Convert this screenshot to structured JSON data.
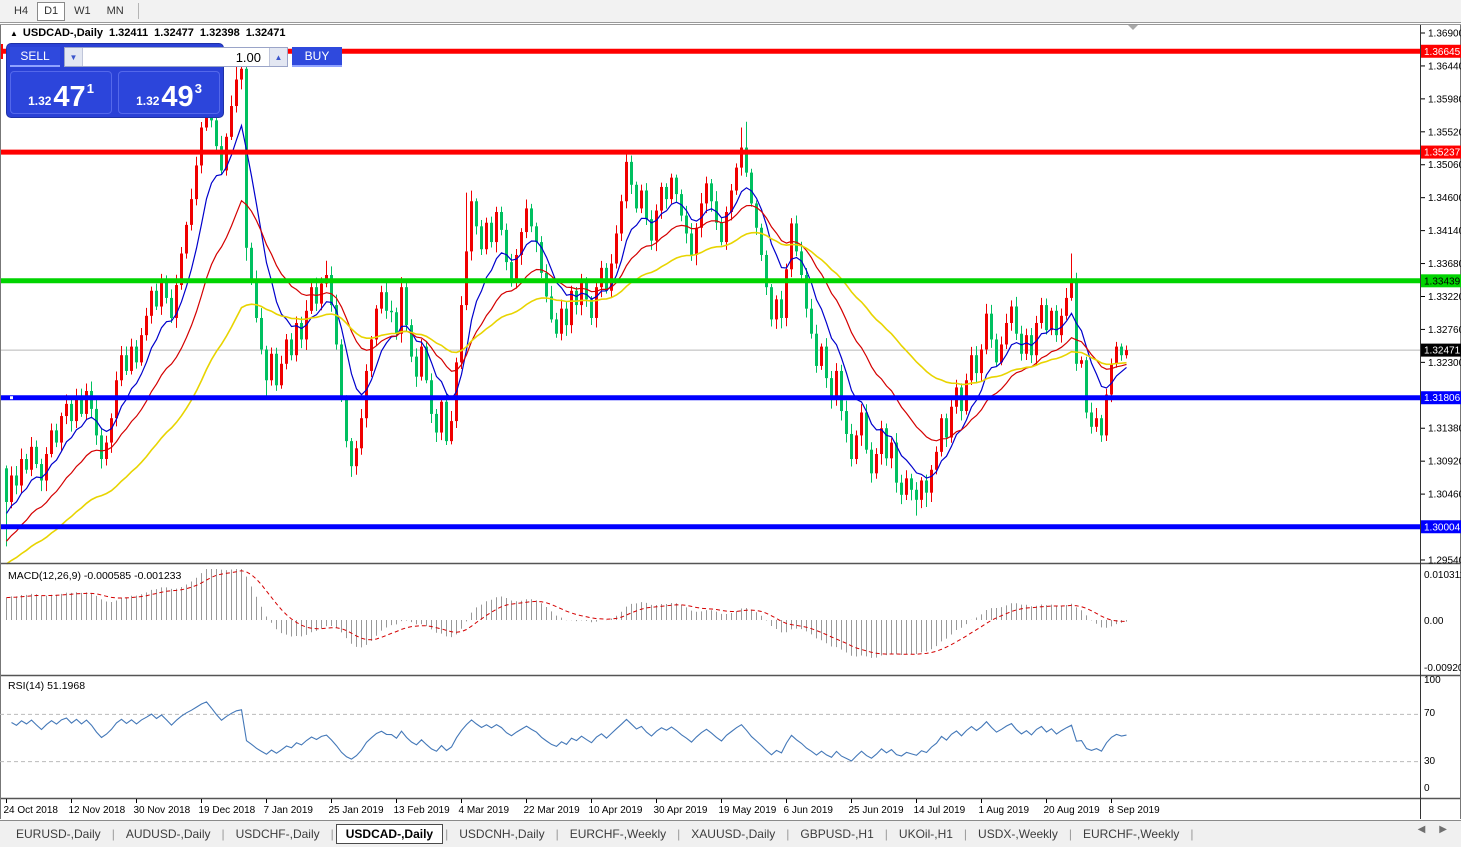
{
  "toolbar": {
    "timeframes": [
      "H4",
      "D1",
      "W1",
      "MN"
    ],
    "active": "D1"
  },
  "window_title": {
    "symbol": "USDCAD-,Daily",
    "open": "1.32411",
    "high": "1.32477",
    "low": "1.32398",
    "close": "1.32471"
  },
  "trade_panel": {
    "sell_label": "SELL",
    "buy_label": "BUY",
    "volume": "1.00",
    "sell_price_small": "1.32",
    "sell_price_big": "47",
    "sell_price_sup": "1",
    "buy_price_small": "1.32",
    "buy_price_big": "49",
    "buy_price_sup": "3",
    "panel_color": "#2a41d6"
  },
  "price_axis": {
    "ticks": [
      "1.36900",
      "1.36440",
      "1.35980",
      "1.35520",
      "1.35060",
      "1.34600",
      "1.34140",
      "1.33680",
      "1.33220",
      "1.32760",
      "1.32300",
      "1.31380",
      "1.30920",
      "1.30460",
      "1.29540"
    ],
    "level_labels": [
      {
        "label": "1.36645",
        "price": 1.36645,
        "bg": "#ff0000",
        "fg": "#ffffff"
      },
      {
        "label": "1.35237",
        "price": 1.35237,
        "bg": "#ff0000",
        "fg": "#ffffff"
      },
      {
        "label": "1.33439",
        "price": 1.33439,
        "bg": "#00d400",
        "fg": "#000000"
      },
      {
        "label": "1.32471",
        "price": 1.32471,
        "bg": "#000000",
        "fg": "#ffffff"
      },
      {
        "label": "1.31806",
        "price": 1.31806,
        "bg": "#0000ff",
        "fg": "#ffffff"
      },
      {
        "label": "1.30004",
        "price": 1.30004,
        "bg": "#0000ff",
        "fg": "#ffffff"
      }
    ]
  },
  "chart_data": {
    "type": "candlestick",
    "symbol": "USDCAD",
    "timeframe": "Daily",
    "bull_color": "#f00000",
    "bear_color": "#00c060",
    "first_open": 1.3082,
    "closes": [
      1.3035,
      1.3072,
      1.3058,
      1.3095,
      1.308,
      1.3112,
      1.3088,
      1.3065,
      1.3102,
      1.3135,
      1.3118,
      1.3155,
      1.3172,
      1.3148,
      1.318,
      1.3158,
      1.319,
      1.3165,
      1.3128,
      1.3095,
      1.3118,
      1.3152,
      1.3205,
      1.324,
      1.3218,
      1.3252,
      1.323,
      1.3268,
      1.3295,
      1.333,
      1.3308,
      1.3345,
      1.332,
      1.3292,
      1.3338,
      1.3382,
      1.3422,
      1.3458,
      1.3505,
      1.3558,
      1.36,
      1.3568,
      1.3532,
      1.3498,
      1.3545,
      1.3588,
      1.3625,
      1.364,
      1.339,
      1.3345,
      1.3292,
      1.3248,
      1.3205,
      1.3242,
      1.3198,
      1.3228,
      1.3262,
      1.324,
      1.3285,
      1.3262,
      1.3302,
      1.3335,
      1.3312,
      1.334,
      1.3352,
      1.331,
      1.3255,
      1.318,
      1.312,
      1.3085,
      1.311,
      1.3152,
      1.3218,
      1.3262,
      1.3305,
      1.3328,
      1.3302,
      1.33,
      1.327,
      1.3335,
      1.3282,
      1.3238,
      1.321,
      1.3252,
      1.3205,
      1.3158,
      1.3132,
      1.3175,
      1.312,
      1.3148,
      1.323,
      1.331,
      1.3385,
      1.3455,
      1.342,
      1.3388,
      1.3425,
      1.3398,
      1.344,
      1.3415,
      1.337,
      1.3342,
      1.338,
      1.3412,
      1.3445,
      1.342,
      1.3398,
      1.3355,
      1.3322,
      1.329,
      1.327,
      1.3305,
      1.3282,
      1.333,
      1.331,
      1.3345,
      1.3318,
      1.3292,
      1.3335,
      1.3362,
      1.333,
      1.3368,
      1.341,
      1.3455,
      1.351,
      1.3478,
      1.3445,
      1.347,
      1.343,
      1.34,
      1.3442,
      1.3475,
      1.3458,
      1.3488,
      1.3465,
      1.3435,
      1.341,
      1.338,
      1.3418,
      1.3452,
      1.348,
      1.3455,
      1.3425,
      1.3398,
      1.344,
      1.347,
      1.3502,
      1.353,
      1.3495,
      1.3452,
      1.3418,
      1.338,
      1.3335,
      1.329,
      1.3318,
      1.3292,
      1.336,
      1.3424,
      1.3385,
      1.3352,
      1.3305,
      1.327,
      1.3225,
      1.3252,
      1.3208,
      1.3178,
      1.3218,
      1.3162,
      1.313,
      1.3095,
      1.3128,
      1.316,
      1.3108,
      1.3075,
      1.3102,
      1.3138,
      1.3096,
      1.3118,
      1.3062,
      1.3045,
      1.3068,
      1.3052,
      1.3038,
      1.3065,
      1.3048,
      1.308,
      1.3105,
      1.3152,
      1.3125,
      1.3168,
      1.3195,
      1.3162,
      1.3205,
      1.324,
      1.3215,
      1.3248,
      1.3298,
      1.3262,
      1.323,
      1.3255,
      1.3285,
      1.3308,
      1.327,
      1.3242,
      1.3268,
      1.324,
      1.3285,
      1.331,
      1.3275,
      1.3302,
      1.3268,
      1.3295,
      1.332,
      1.3342,
      1.3228,
      1.3233,
      1.316,
      1.314,
      1.3152,
      1.3128,
      1.3185,
      1.3228,
      1.3252,
      1.324,
      1.32471
    ],
    "wick_overrides": {
      "0": {
        "low": 1.2973
      },
      "40": {
        "high": 1.3612
      },
      "46": {
        "high": 1.36645
      },
      "47": {
        "high": 1.3656
      },
      "48": {
        "low": 1.3372
      },
      "52": {
        "low": 1.318
      },
      "64": {
        "high": 1.3372
      },
      "69": {
        "low": 1.307
      },
      "70": {
        "low": 1.3073
      },
      "79": {
        "high": 1.3349
      },
      "92": {
        "high": 1.3467
      },
      "124": {
        "high": 1.35237
      },
      "147": {
        "high": 1.3558
      },
      "148": {
        "high": 1.3566
      },
      "179": {
        "low": 1.3032
      },
      "182": {
        "low": 1.3016
      },
      "184": {
        "low": 1.3028
      },
      "213": {
        "high": 1.3382
      },
      "219": {
        "low": 1.3119
      }
    },
    "levels": [
      {
        "price": 1.36645,
        "color": "#ff0000",
        "width": 5
      },
      {
        "price": 1.35237,
        "color": "#ff0000",
        "width": 5
      },
      {
        "price": 1.33439,
        "color": "#00d400",
        "width": 5
      },
      {
        "price": 1.31806,
        "color": "#0000ff",
        "width": 5
      },
      {
        "price": 1.30004,
        "color": "#0000ff",
        "width": 5
      }
    ],
    "current_price": {
      "price": 1.32471,
      "color": "#b8b8b8"
    },
    "moving_averages": [
      {
        "period": 9,
        "color": "#0000cc",
        "seed": 1.3015
      },
      {
        "period": 22,
        "color": "#d40000",
        "seed": 1.2975
      },
      {
        "period": 50,
        "color": "#e8d400",
        "seed": 1.2945
      }
    ],
    "date_labels": [
      "24 Oct 2018",
      "12 Nov 2018",
      "30 Nov 2018",
      "19 Dec 2018",
      "7 Jan 2019",
      "25 Jan 2019",
      "13 Feb 2019",
      "4 Mar 2019",
      "22 Mar 2019",
      "10 Apr 2019",
      "30 Apr 2019",
      "19 May 2019",
      "6 Jun 2019",
      "25 Jun 2019",
      "14 Jul 2019",
      "1 Aug 2019",
      "20 Aug 2019",
      "8 Sep 2019"
    ],
    "date_label_step": 13
  },
  "macd": {
    "label": "MACD(12,26,9) -0.000585 -0.001233",
    "fast": 12,
    "slow": 26,
    "signal": 9,
    "value": "-0.000585",
    "signal_value": "-0.001233",
    "axis": [
      "0.010311",
      "0.00",
      "-0.009203"
    ],
    "bar_color": "#999999",
    "signal_color": "#d40000"
  },
  "rsi": {
    "label": "RSI(14) 51.1968",
    "period": 14,
    "value": "51.1968",
    "axis": [
      "100",
      "70",
      "30",
      "0"
    ],
    "levels": [
      70,
      30
    ],
    "line_color": "#4478b8"
  },
  "tabs": {
    "items": [
      "EURUSD-,Daily",
      "AUDUSD-,Daily",
      "USDCHF-,Daily",
      "USDCAD-,Daily",
      "USDCNH-,Daily",
      "EURCHF-,Weekly",
      "XAUUSD-,Daily",
      "GBPUSD-,H1",
      "UKOil-,H1",
      "USDX-,Weekly",
      "EURCHF-,Weekly"
    ],
    "active_index": 3
  }
}
